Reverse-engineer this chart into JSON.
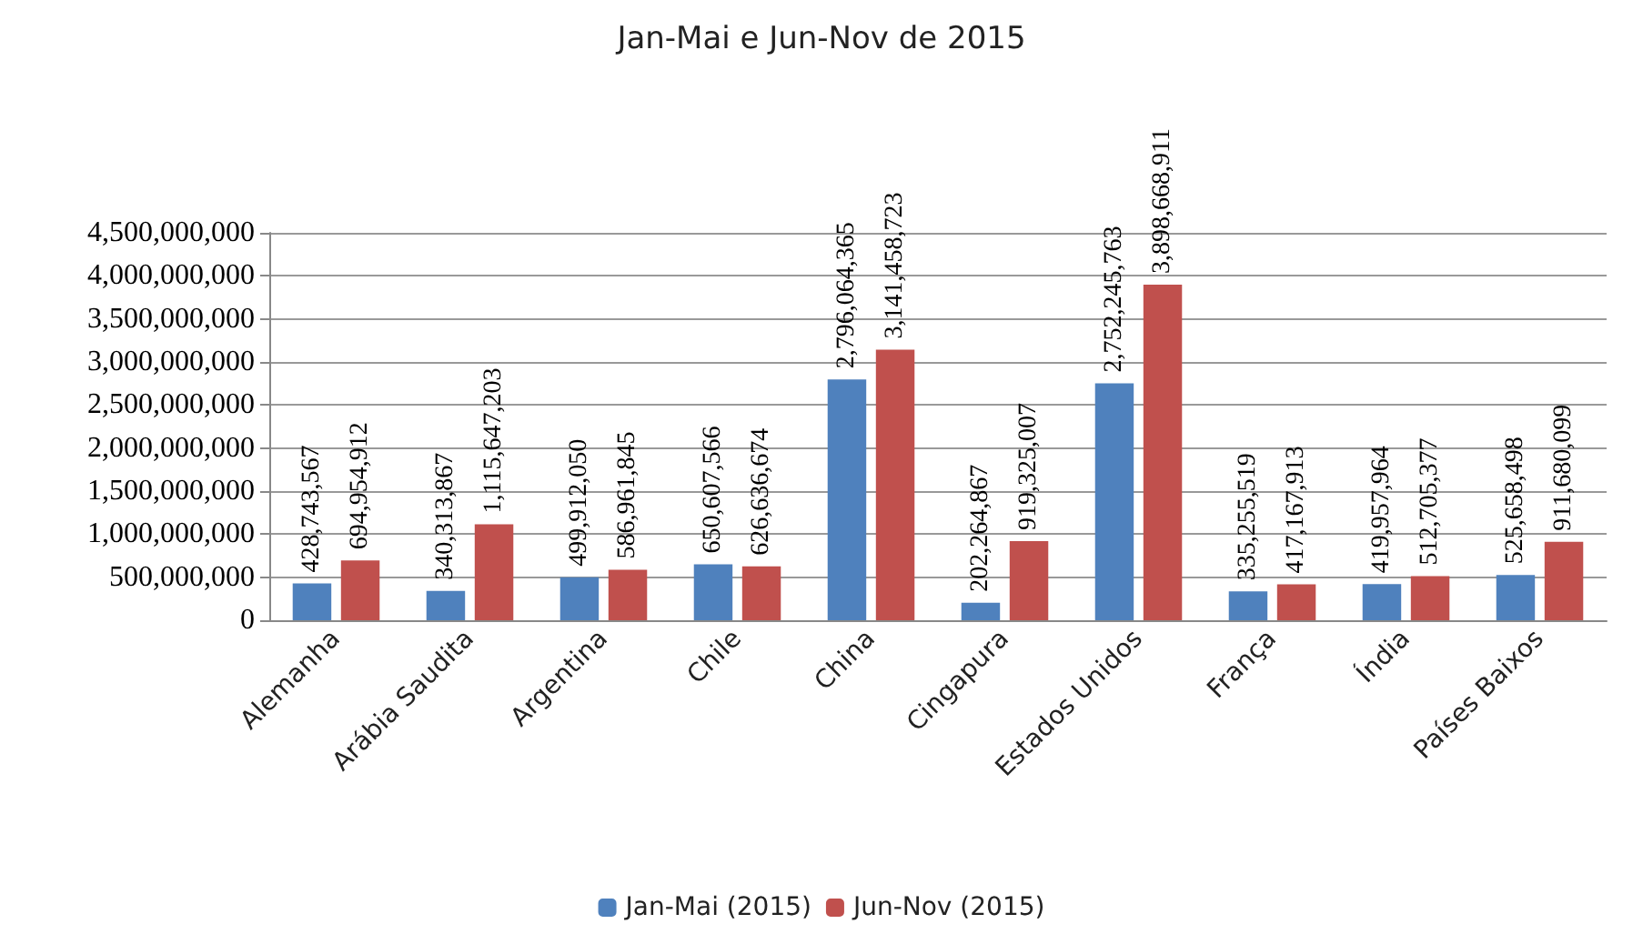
{
  "chart_data": {
    "type": "bar",
    "title": "Jan-Mai e Jun-Nov de 2015",
    "categories": [
      "Alemanha",
      "Arábia Saudita",
      "Argentina",
      "Chile",
      "China",
      "Cingapura",
      "Estados Unidos",
      "França",
      "Índia",
      "Países Baixos"
    ],
    "series": [
      {
        "name": "Jan-Mai (2015)",
        "color": "#4f81bd",
        "values": [
          428743567,
          340313867,
          499912050,
          650607566,
          2796064365,
          202264867,
          2752245763,
          335255519,
          419957964,
          525658498
        ],
        "value_labels": [
          "428,743,567",
          "340,313,867",
          "499,912,050",
          "650,607,566",
          "2,796,064,365",
          "202,264,867",
          "2,752,245,763",
          "335,255,519",
          "419,957,964",
          "525,658,498"
        ]
      },
      {
        "name": "Jun-Nov (2015)",
        "color": "#c0504d",
        "values": [
          694954912,
          1115647203,
          586961845,
          626636674,
          3141458723,
          919325007,
          3898668911,
          417167913,
          512705377,
          911680099
        ],
        "value_labels": [
          "694,954,912",
          "1,115,647,203",
          "586,961,845",
          "626,636,674",
          "3,141,458,723",
          "919,325,007",
          "3,898,668,911",
          "417,167,913",
          "512,705,377",
          "911,680,099"
        ]
      }
    ],
    "ylim": [
      0,
      4500000000
    ],
    "yticks": [
      0,
      {
        "value": 500000000,
        "label": "500,000,000"
      },
      {
        "value": 1000000000,
        "label": "1,000,000,000"
      },
      {
        "value": 1500000000,
        "label": "1,500,000,000"
      },
      {
        "value": 2000000000,
        "label": "2,000,000,000"
      },
      {
        "value": 2500000000,
        "label": "2,500,000,000"
      },
      {
        "value": 3000000000,
        "label": "3,000,000,000"
      },
      {
        "value": 3500000000,
        "label": "3,500,000,000"
      },
      {
        "value": 4000000000,
        "label": "4,000,000,000"
      },
      {
        "value": 4500000000,
        "label": "4,500,000,000"
      }
    ],
    "grid": "y",
    "legend": "bottom"
  }
}
